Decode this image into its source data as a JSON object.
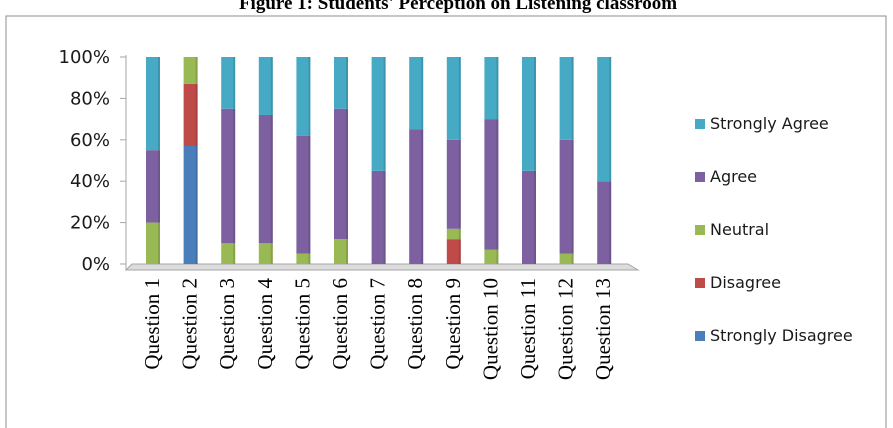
{
  "chart_data": {
    "type": "bar",
    "stacked": true,
    "title": "Figure 1: Students' Perception on Listening classroom",
    "categories": [
      "Question 1",
      "Question 2",
      "Question 3",
      "Question 4",
      "Question 5",
      "Question 6",
      "Question 7",
      "Question 8",
      "Question 9",
      "Question 10",
      "Question 11",
      "Question 12",
      "Question 13"
    ],
    "series": [
      {
        "name": "Strongly Disagree",
        "color": "#4a7ebb",
        "values": [
          0,
          57,
          0,
          0,
          0,
          0,
          0,
          0,
          0,
          0,
          0,
          0,
          0
        ]
      },
      {
        "name": "Disagree",
        "color": "#be4b48",
        "values": [
          0,
          30,
          0,
          0,
          0,
          0,
          0,
          0,
          12,
          0,
          0,
          0,
          0
        ]
      },
      {
        "name": "Neutral",
        "color": "#98b954",
        "values": [
          20,
          13,
          10,
          10,
          5,
          12,
          0,
          0,
          5,
          7,
          0,
          5,
          0
        ]
      },
      {
        "name": "Agree",
        "color": "#7d60a0",
        "values": [
          35,
          0,
          65,
          62,
          57,
          63,
          45,
          65,
          43,
          63,
          45,
          55,
          40
        ]
      },
      {
        "name": "Strongly Agree",
        "color": "#46aac5",
        "values": [
          45,
          0,
          25,
          28,
          38,
          25,
          55,
          35,
          40,
          30,
          55,
          40,
          60
        ]
      }
    ],
    "yticks": [
      "0%",
      "20%",
      "40%",
      "60%",
      "80%",
      "100%"
    ],
    "ylim": [
      0,
      100
    ],
    "legend_order": [
      "Strongly Agree",
      "Agree",
      "Neutral",
      "Disagree",
      "Strongly Disagree"
    ],
    "legend_position": "right",
    "grid": false
  }
}
